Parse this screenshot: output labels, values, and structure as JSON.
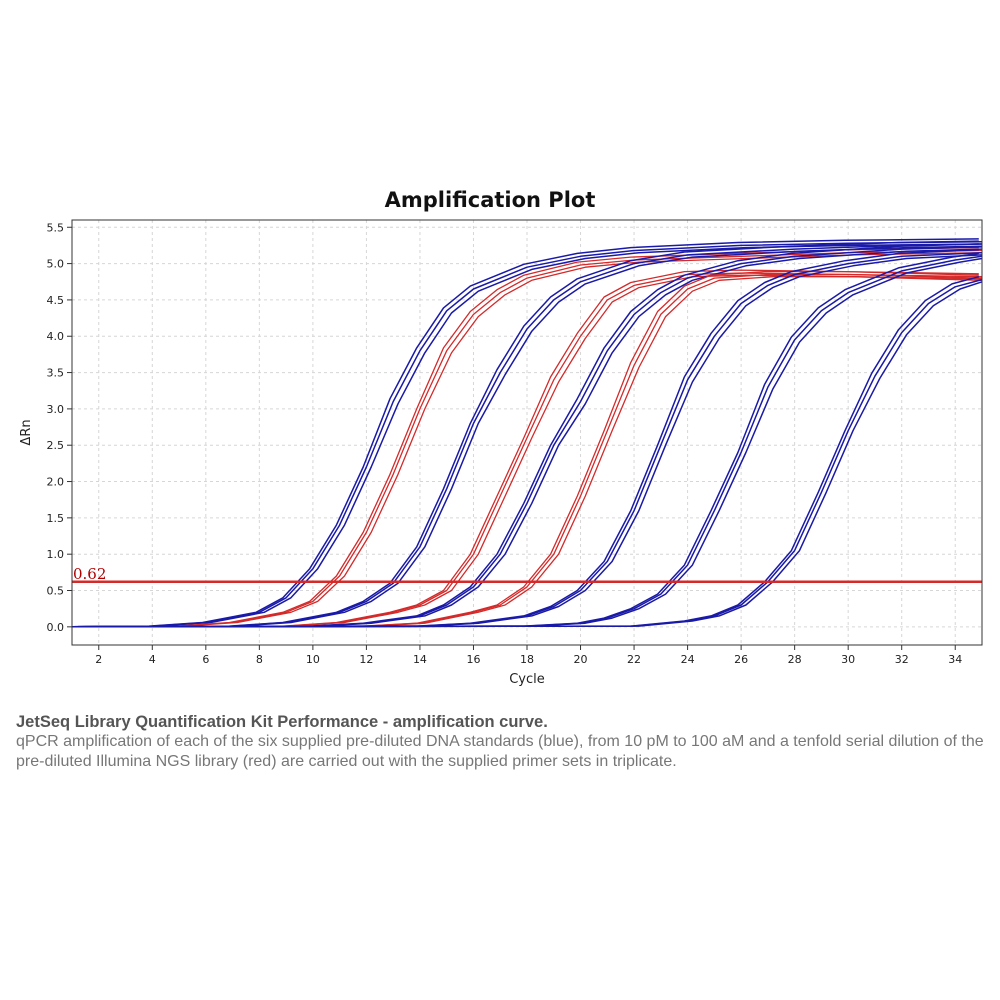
{
  "chart_data": {
    "type": "line",
    "title": "Amplification Plot",
    "xlabel": "Cycle",
    "ylabel": "ΔRn",
    "xlim": [
      1,
      35
    ],
    "ylim": [
      -0.25,
      5.6
    ],
    "xticks": [
      2,
      4,
      6,
      8,
      10,
      12,
      14,
      16,
      18,
      20,
      22,
      24,
      26,
      28,
      30,
      32,
      34
    ],
    "yticks": [
      0.0,
      0.5,
      1.0,
      1.5,
      2.0,
      2.5,
      3.0,
      3.5,
      4.0,
      4.5,
      5.0,
      5.5
    ],
    "ytick_labels": [
      "0.0",
      "0.5",
      "1.0",
      "1.5",
      "2.0",
      "2.5",
      "3.0",
      "3.5",
      "4.0",
      "4.5",
      "5.0",
      "5.5"
    ],
    "grid": true,
    "threshold": {
      "value": 0.62,
      "label": "0.62",
      "color": "#d42a2a"
    },
    "colors": {
      "standards": "#1a1aa8",
      "library": "#d42a2a"
    },
    "series": [
      {
        "group": "standards",
        "values_x": [
          1,
          4,
          6,
          8,
          9,
          10,
          11,
          12,
          13,
          14,
          15,
          16,
          18,
          20,
          22,
          26,
          30,
          35
        ],
        "values_y": [
          0.0,
          0.01,
          0.06,
          0.2,
          0.4,
          0.8,
          1.4,
          2.2,
          3.1,
          3.8,
          4.35,
          4.65,
          4.95,
          5.1,
          5.18,
          5.25,
          5.28,
          5.3
        ]
      },
      {
        "group": "library",
        "values_x": [
          1,
          5,
          7,
          9,
          10,
          11,
          12,
          13,
          14,
          15,
          16,
          17,
          18,
          20,
          22,
          26,
          30,
          35
        ],
        "values_y": [
          0.0,
          0.01,
          0.06,
          0.2,
          0.35,
          0.7,
          1.3,
          2.1,
          3.0,
          3.8,
          4.3,
          4.6,
          4.8,
          4.98,
          5.05,
          5.1,
          5.15,
          5.18
        ]
      },
      {
        "group": "standards",
        "values_x": [
          1,
          7,
          9,
          11,
          12,
          13,
          14,
          15,
          16,
          17,
          18,
          19,
          20,
          22,
          24,
          28,
          32,
          35
        ],
        "values_y": [
          0.0,
          0.01,
          0.06,
          0.2,
          0.35,
          0.6,
          1.1,
          1.9,
          2.8,
          3.5,
          4.1,
          4.5,
          4.75,
          5.0,
          5.12,
          5.2,
          5.25,
          5.27
        ]
      },
      {
        "group": "library",
        "values_x": [
          1,
          9,
          11,
          13,
          14,
          15,
          16,
          17,
          18,
          19,
          20,
          21,
          22,
          24,
          26,
          30,
          35
        ],
        "values_y": [
          0.0,
          0.01,
          0.06,
          0.2,
          0.3,
          0.5,
          1.0,
          1.8,
          2.6,
          3.4,
          4.0,
          4.5,
          4.7,
          4.85,
          4.87,
          4.85,
          4.8
        ]
      },
      {
        "group": "standards",
        "values_x": [
          1,
          10,
          12,
          14,
          15,
          16,
          17,
          18,
          19,
          20,
          21,
          22,
          23,
          24,
          26,
          28,
          32,
          35
        ],
        "values_y": [
          0.0,
          0.01,
          0.05,
          0.15,
          0.3,
          0.55,
          1.0,
          1.7,
          2.5,
          3.1,
          3.8,
          4.3,
          4.6,
          4.8,
          5.0,
          5.1,
          5.2,
          5.23
        ]
      },
      {
        "group": "library",
        "values_x": [
          1,
          12,
          14,
          16,
          17,
          18,
          19,
          20,
          21,
          22,
          23,
          24,
          25,
          27,
          30,
          35
        ],
        "values_y": [
          0.0,
          0.01,
          0.05,
          0.2,
          0.3,
          0.55,
          1.0,
          1.8,
          2.7,
          3.6,
          4.3,
          4.65,
          4.8,
          4.85,
          4.85,
          4.82
        ]
      },
      {
        "group": "standards",
        "values_x": [
          1,
          14,
          16,
          18,
          19,
          20,
          21,
          22,
          23,
          24,
          25,
          26,
          27,
          28,
          30,
          32,
          35
        ],
        "values_y": [
          0.0,
          0.01,
          0.05,
          0.15,
          0.28,
          0.5,
          0.9,
          1.6,
          2.5,
          3.4,
          4.0,
          4.45,
          4.7,
          4.85,
          5.0,
          5.1,
          5.15
        ]
      },
      {
        "group": "standards",
        "values_x": [
          1,
          18,
          20,
          21,
          22,
          23,
          24,
          25,
          26,
          27,
          28,
          29,
          30,
          32,
          34,
          35
        ],
        "values_y": [
          0.0,
          0.01,
          0.05,
          0.12,
          0.25,
          0.45,
          0.85,
          1.6,
          2.4,
          3.3,
          3.95,
          4.35,
          4.6,
          4.9,
          5.05,
          5.1
        ]
      },
      {
        "group": "standards",
        "values_x": [
          1,
          22,
          24,
          25,
          26,
          27,
          28,
          29,
          30,
          31,
          32,
          33,
          34,
          35
        ],
        "values_y": [
          0.0,
          0.01,
          0.08,
          0.15,
          0.3,
          0.62,
          1.05,
          1.85,
          2.7,
          3.45,
          4.05,
          4.45,
          4.68,
          4.78
        ]
      }
    ]
  },
  "caption": {
    "title": "JetSeq Library Quantification Kit Performance - amplification curve.",
    "body": "qPCR amplification of each of the six supplied pre-diluted DNA standards (blue), from 10 pM to 100 aM and a tenfold serial dilution of the pre-diluted Illumina NGS library (red) are carried out with the supplied primer sets in triplicate."
  }
}
